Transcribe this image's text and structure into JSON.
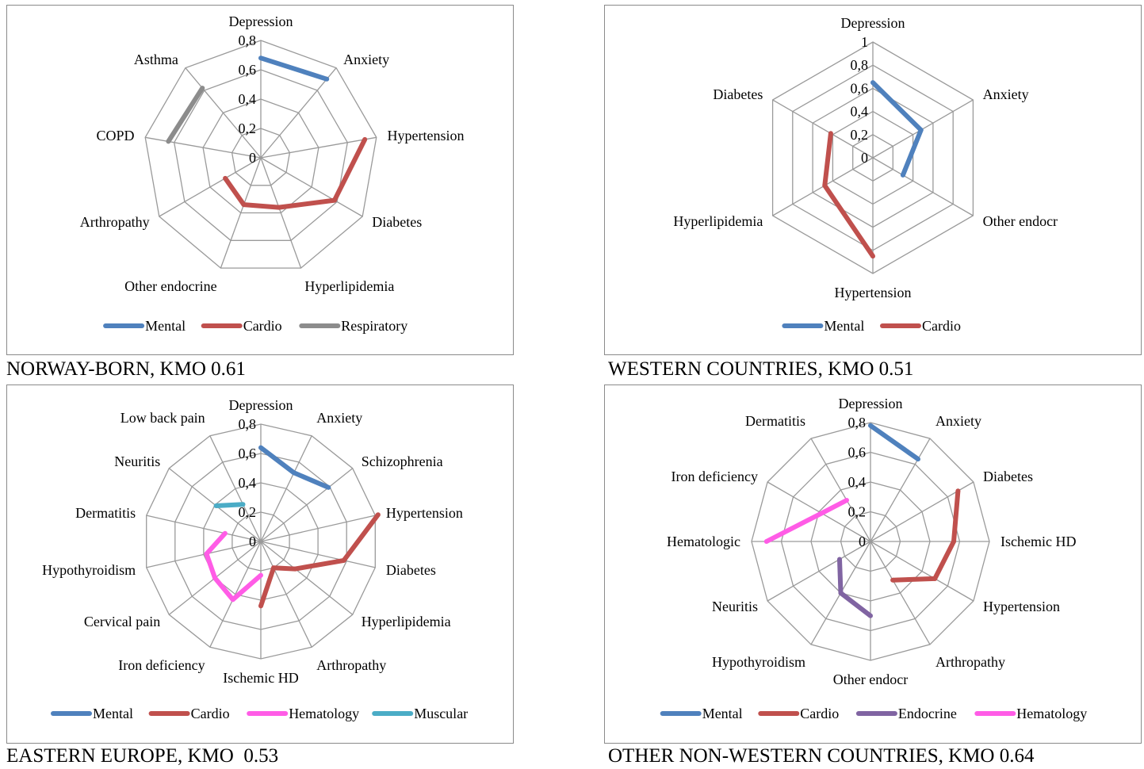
{
  "chart_data": [
    {
      "type": "radar",
      "caption": "NORWAY-BORN, KMO 0.61",
      "axes": [
        "Depression",
        "Anxiety",
        "Hypertension",
        "Diabetes",
        "Hyperlipidemia",
        "Other endocrine",
        "Arthropathy",
        "COPD",
        "Asthma"
      ],
      "ticks": [
        "0",
        "0,2",
        "0,4",
        "0,6",
        "0,8"
      ],
      "range": [
        0,
        0.8
      ],
      "series": [
        {
          "name": "Mental",
          "color": "#4f81bd",
          "values": [
            0.68,
            0.7,
            null,
            null,
            null,
            null,
            null,
            null,
            null
          ]
        },
        {
          "name": "Cardio",
          "color": "#c0504d",
          "values": [
            null,
            null,
            0.72,
            0.58,
            0.36,
            0.34,
            0.28,
            null,
            null
          ]
        },
        {
          "name": "Respiratory",
          "color": "#8c8c8c",
          "values": [
            null,
            null,
            null,
            null,
            null,
            null,
            null,
            0.64,
            0.62
          ]
        }
      ]
    },
    {
      "type": "radar",
      "caption": "WESTERN COUNTRIES, KMO 0.51",
      "axes": [
        "Depression",
        "Anxiety",
        "Other endocr",
        "Hypertension",
        "Hyperlipidemia",
        "Diabetes"
      ],
      "ticks": [
        "0",
        "0,2",
        "0,4",
        "0,6",
        "0,8",
        "1"
      ],
      "range": [
        0,
        1
      ],
      "series": [
        {
          "name": "Mental",
          "color": "#4f81bd",
          "values": [
            0.65,
            0.48,
            0.3,
            null,
            null,
            null
          ]
        },
        {
          "name": "Cardio",
          "color": "#c0504d",
          "values": [
            null,
            null,
            null,
            0.85,
            0.48,
            0.42
          ]
        }
      ]
    },
    {
      "type": "radar",
      "caption": "EASTERN EUROPE, KMO  0.53",
      "axes": [
        "Depression",
        "Anxiety",
        "Schizophrenia",
        "Hypertension",
        "Diabetes",
        "Hyperlipidemia",
        "Arthropathy",
        "Ischemic HD",
        "Iron deficiency",
        "Cervical pain",
        "Hypothyroidism",
        "Dermatitis",
        "Neuritis",
        "Low back pain"
      ],
      "ticks": [
        "0",
        "0,2",
        "0,4",
        "0,6",
        "0,8"
      ],
      "range": [
        0,
        0.8
      ],
      "series": [
        {
          "name": "Mental",
          "color": "#4f81bd",
          "values": [
            0.64,
            0.52,
            0.59,
            null,
            null,
            null,
            null,
            null,
            null,
            null,
            null,
            null,
            null,
            null
          ]
        },
        {
          "name": "Cardio",
          "color": "#c0504d",
          "values": [
            null,
            null,
            null,
            0.82,
            0.58,
            0.3,
            0.2,
            0.44,
            null,
            null,
            null,
            null,
            null,
            null
          ]
        },
        {
          "name": "Hematology",
          "color": "#ff5ce6",
          "values": [
            null,
            null,
            null,
            null,
            null,
            null,
            null,
            0.23,
            0.44,
            0.4,
            0.38,
            0.25,
            null,
            null
          ]
        },
        {
          "name": "Muscular",
          "color": "#4bacc6",
          "values": [
            null,
            null,
            null,
            null,
            null,
            null,
            null,
            null,
            null,
            null,
            null,
            null,
            0.39,
            0.28
          ]
        }
      ]
    },
    {
      "type": "radar",
      "caption": "OTHER NON-WESTERN COUNTRIES, KMO 0.64",
      "axes": [
        "Depression",
        "Anxiety",
        "Diabetes",
        "Ischemic HD",
        "Hypertension",
        "Arthropathy",
        "Other endocr",
        "Hypothyroidism",
        "Neuritis",
        "Hematologic",
        "Iron deficiency",
        "Dermatitis"
      ],
      "ticks": [
        "0",
        "0,2",
        "0,4",
        "0,6",
        "0,8"
      ],
      "range": [
        0,
        0.8
      ],
      "series": [
        {
          "name": "Mental",
          "color": "#4f81bd",
          "values": [
            0.78,
            0.64,
            null,
            null,
            null,
            null,
            null,
            null,
            null,
            null,
            null,
            null
          ]
        },
        {
          "name": "Cardio",
          "color": "#c0504d",
          "values": [
            null,
            null,
            0.68,
            0.56,
            0.5,
            0.3,
            null,
            null,
            null,
            null,
            null,
            null
          ]
        },
        {
          "name": "Endocrine",
          "color": "#8064a2",
          "values": [
            null,
            null,
            null,
            null,
            null,
            null,
            0.5,
            0.4,
            0.24,
            null,
            null,
            null
          ]
        },
        {
          "name": "Hematology",
          "color": "#ff5ce6",
          "values": [
            null,
            null,
            null,
            null,
            null,
            null,
            null,
            null,
            null,
            0.7,
            0.38,
            0.32
          ]
        }
      ]
    }
  ]
}
